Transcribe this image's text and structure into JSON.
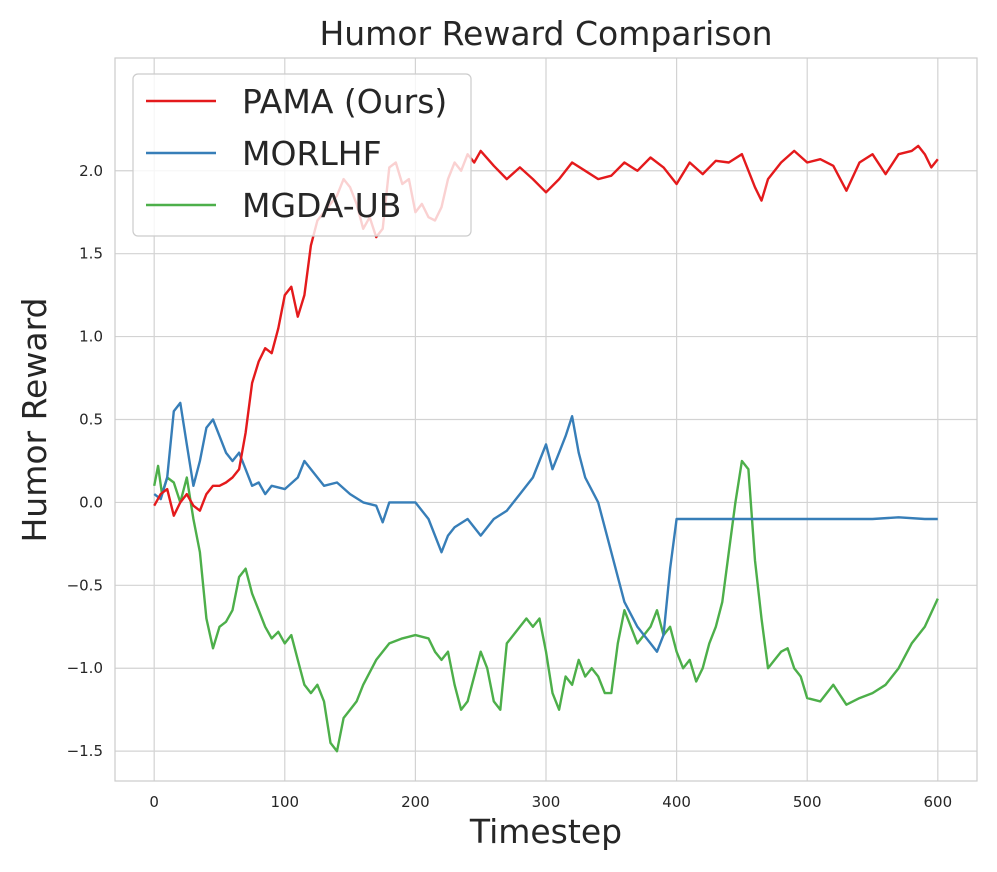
{
  "chart_data": {
    "type": "line",
    "title": "Humor Reward Comparison",
    "xlabel": "Timestep",
    "ylabel": "Humor Reward",
    "xlim": [
      -30,
      630
    ],
    "ylim": [
      -1.68,
      2.68
    ],
    "xticks": [
      0,
      100,
      200,
      300,
      400,
      500,
      600
    ],
    "yticks": [
      -1.5,
      -1.0,
      -0.5,
      0.0,
      0.5,
      1.0,
      1.5,
      2.0
    ],
    "xtick_labels": [
      "0",
      "100",
      "200",
      "300",
      "400",
      "500",
      "600"
    ],
    "ytick_labels": [
      "−1.5",
      "−1.0",
      "−0.5",
      "0.0",
      "0.5",
      "1.0",
      "1.5",
      "2.0"
    ],
    "grid": true,
    "legend_position": "top-left",
    "series": [
      {
        "name": "PAMA (Ours)",
        "color": "#e41a1c",
        "x": [
          0,
          5,
          10,
          15,
          20,
          25,
          30,
          35,
          40,
          45,
          50,
          55,
          60,
          65,
          70,
          75,
          80,
          85,
          90,
          95,
          100,
          105,
          110,
          115,
          120,
          125,
          130,
          135,
          140,
          145,
          150,
          155,
          160,
          165,
          170,
          175,
          180,
          185,
          190,
          195,
          200,
          205,
          210,
          215,
          220,
          225,
          230,
          235,
          240,
          245,
          250,
          260,
          270,
          280,
          290,
          300,
          310,
          320,
          330,
          340,
          350,
          360,
          370,
          380,
          390,
          400,
          410,
          420,
          430,
          440,
          450,
          460,
          465,
          470,
          480,
          490,
          500,
          510,
          520,
          530,
          540,
          550,
          560,
          570,
          580,
          585,
          590,
          595,
          600
        ],
        "y": [
          -0.02,
          0.05,
          0.08,
          -0.08,
          0.0,
          0.05,
          -0.02,
          -0.05,
          0.05,
          0.1,
          0.1,
          0.12,
          0.15,
          0.2,
          0.42,
          0.72,
          0.85,
          0.93,
          0.9,
          1.05,
          1.25,
          1.3,
          1.12,
          1.25,
          1.55,
          1.7,
          1.75,
          1.8,
          1.85,
          1.95,
          1.9,
          1.8,
          1.65,
          1.72,
          1.6,
          1.65,
          2.02,
          2.05,
          1.92,
          1.95,
          1.75,
          1.8,
          1.72,
          1.7,
          1.78,
          1.95,
          2.05,
          2.0,
          2.1,
          2.05,
          2.12,
          2.03,
          1.95,
          2.02,
          1.95,
          1.87,
          1.95,
          2.05,
          2.0,
          1.95,
          1.97,
          2.05,
          2.0,
          2.08,
          2.02,
          1.92,
          2.05,
          1.98,
          2.06,
          2.05,
          2.1,
          1.9,
          1.82,
          1.95,
          2.05,
          2.12,
          2.05,
          2.07,
          2.03,
          1.88,
          2.05,
          2.1,
          1.98,
          2.1,
          2.12,
          2.15,
          2.1,
          2.02,
          2.07
        ]
      },
      {
        "name": "MORLHF",
        "color": "#377eb8",
        "x": [
          0,
          5,
          10,
          15,
          20,
          25,
          30,
          35,
          40,
          45,
          50,
          55,
          60,
          65,
          70,
          75,
          80,
          85,
          90,
          100,
          110,
          115,
          120,
          130,
          140,
          150,
          160,
          170,
          175,
          180,
          190,
          200,
          210,
          220,
          225,
          230,
          240,
          250,
          260,
          270,
          280,
          290,
          300,
          305,
          310,
          315,
          320,
          325,
          330,
          340,
          350,
          360,
          370,
          380,
          385,
          390,
          395,
          400,
          420,
          450,
          480,
          500,
          520,
          550,
          570,
          590,
          600
        ],
        "y": [
          0.05,
          0.02,
          0.15,
          0.55,
          0.6,
          0.35,
          0.1,
          0.25,
          0.45,
          0.5,
          0.4,
          0.3,
          0.25,
          0.3,
          0.2,
          0.1,
          0.12,
          0.05,
          0.1,
          0.08,
          0.15,
          0.25,
          0.2,
          0.1,
          0.12,
          0.05,
          0.0,
          -0.02,
          -0.12,
          0.0,
          0.0,
          0.0,
          -0.1,
          -0.3,
          -0.2,
          -0.15,
          -0.1,
          -0.2,
          -0.1,
          -0.05,
          0.05,
          0.15,
          0.35,
          0.2,
          0.3,
          0.4,
          0.52,
          0.3,
          0.15,
          0.0,
          -0.3,
          -0.6,
          -0.75,
          -0.85,
          -0.9,
          -0.8,
          -0.4,
          -0.1,
          -0.1,
          -0.1,
          -0.1,
          -0.1,
          -0.1,
          -0.1,
          -0.09,
          -0.1,
          -0.1
        ]
      },
      {
        "name": "MGDA-UB",
        "color": "#4daf4a",
        "x": [
          0,
          3,
          6,
          10,
          15,
          20,
          25,
          30,
          35,
          40,
          45,
          50,
          55,
          60,
          65,
          70,
          75,
          80,
          85,
          90,
          95,
          100,
          105,
          110,
          115,
          120,
          125,
          130,
          135,
          140,
          145,
          150,
          155,
          160,
          170,
          180,
          190,
          200,
          210,
          215,
          220,
          225,
          230,
          235,
          240,
          250,
          255,
          260,
          265,
          270,
          280,
          285,
          290,
          295,
          300,
          305,
          310,
          315,
          320,
          325,
          330,
          335,
          340,
          345,
          350,
          355,
          360,
          365,
          370,
          380,
          385,
          390,
          395,
          400,
          405,
          410,
          415,
          420,
          425,
          430,
          435,
          440,
          445,
          450,
          455,
          460,
          465,
          470,
          475,
          480,
          485,
          490,
          495,
          500,
          510,
          520,
          530,
          540,
          550,
          560,
          570,
          580,
          590,
          600
        ],
        "y": [
          0.1,
          0.22,
          0.05,
          0.15,
          0.12,
          0.0,
          0.15,
          -0.1,
          -0.3,
          -0.7,
          -0.88,
          -0.75,
          -0.72,
          -0.65,
          -0.45,
          -0.4,
          -0.55,
          -0.65,
          -0.75,
          -0.82,
          -0.78,
          -0.85,
          -0.8,
          -0.95,
          -1.1,
          -1.15,
          -1.1,
          -1.2,
          -1.45,
          -1.5,
          -1.3,
          -1.25,
          -1.2,
          -1.1,
          -0.95,
          -0.85,
          -0.82,
          -0.8,
          -0.82,
          -0.9,
          -0.95,
          -0.9,
          -1.1,
          -1.25,
          -1.2,
          -0.9,
          -1.0,
          -1.2,
          -1.25,
          -0.85,
          -0.75,
          -0.7,
          -0.75,
          -0.7,
          -0.9,
          -1.15,
          -1.25,
          -1.05,
          -1.1,
          -0.95,
          -1.05,
          -1.0,
          -1.05,
          -1.15,
          -1.15,
          -0.85,
          -0.65,
          -0.75,
          -0.85,
          -0.75,
          -0.65,
          -0.8,
          -0.75,
          -0.9,
          -1.0,
          -0.95,
          -1.08,
          -1.0,
          -0.85,
          -0.75,
          -0.6,
          -0.3,
          0.0,
          0.25,
          0.2,
          -0.35,
          -0.7,
          -1.0,
          -0.95,
          -0.9,
          -0.88,
          -1.0,
          -1.05,
          -1.18,
          -1.2,
          -1.1,
          -1.22,
          -1.18,
          -1.15,
          -1.1,
          -1.0,
          -0.85,
          -0.75,
          -0.58
        ]
      }
    ]
  }
}
